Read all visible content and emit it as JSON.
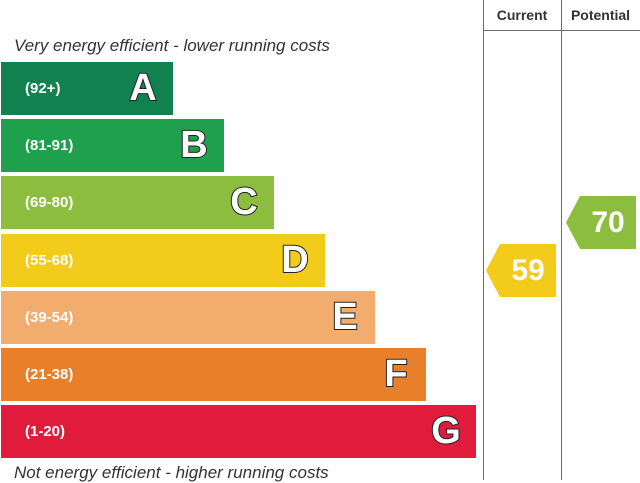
{
  "header": {
    "current_label": "Current",
    "potential_label": "Potential"
  },
  "captions": {
    "top": "Very energy efficient - lower running costs",
    "bottom": "Not energy efficient - higher running costs"
  },
  "chart_data": {
    "type": "bar",
    "title": "",
    "bands": [
      {
        "letter": "A",
        "range": "(92+)",
        "min": 92,
        "max": 100,
        "color": "#118150"
      },
      {
        "letter": "B",
        "range": "(81-91)",
        "min": 81,
        "max": 91,
        "color": "#1ea04c"
      },
      {
        "letter": "C",
        "range": "(69-80)",
        "min": 69,
        "max": 80,
        "color": "#8cbd3f"
      },
      {
        "letter": "D",
        "range": "(55-68)",
        "min": 55,
        "max": 68,
        "color": "#f3cc1b"
      },
      {
        "letter": "E",
        "range": "(39-54)",
        "min": 39,
        "max": 54,
        "color": "#f1ac6e"
      },
      {
        "letter": "F",
        "range": "(21-38)",
        "min": 21,
        "max": 38,
        "color": "#ea7f2a"
      },
      {
        "letter": "G",
        "range": "(1-20)",
        "min": 1,
        "max": 20,
        "color": "#e11b3c"
      }
    ],
    "current": {
      "value": 59,
      "band": "D",
      "color": "#f3cc1b"
    },
    "potential": {
      "value": 70,
      "band": "C",
      "color": "#8cbd3f"
    }
  }
}
